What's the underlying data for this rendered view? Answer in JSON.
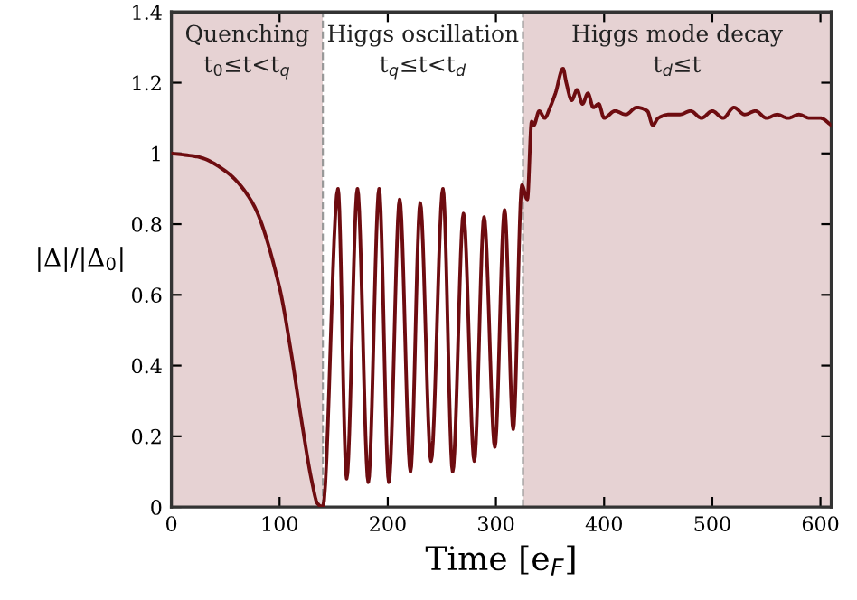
{
  "chart_data": {
    "type": "line",
    "xlabel": "Time [e$_{F}$]",
    "ylabel": "|Δ|/|Δ$_{0}$|",
    "xlim": [
      0,
      610
    ],
    "ylim": [
      0,
      1.4
    ],
    "xticks": [
      0,
      100,
      200,
      300,
      400,
      500,
      600
    ],
    "yticks": [
      0,
      0.2,
      0.4,
      0.6,
      0.8,
      1,
      1.2,
      1.4
    ],
    "grid": false,
    "legend": false,
    "marker": "none",
    "line_style": "solid",
    "bands": [
      {
        "axis": "x",
        "from": 0,
        "to": 140,
        "label": "Quenching\nt$_{0}$≤t<t$_{q}$",
        "color": "#e6d2d3"
      },
      {
        "axis": "x",
        "from": 140,
        "to": 325,
        "label": "Higgs oscillation\nt$_{q}$≤t<t$_{d}$",
        "color": "#ffffff"
      },
      {
        "axis": "x",
        "from": 325,
        "to": 610,
        "label": "Higgs mode decay\nt$_{d}$≤t",
        "color": "#e6d2d3"
      }
    ],
    "ref_lines": [
      {
        "axis": "x",
        "value": 140,
        "color": "#999999",
        "line_style": "dashed"
      },
      {
        "axis": "x",
        "value": 325,
        "color": "#999999",
        "line_style": "dashed"
      }
    ],
    "series": [
      {
        "color": "#6e0c10",
        "x": [
          0,
          25,
          50,
          75,
          100,
          110,
          120,
          130,
          135,
          140,
          154,
          162,
          172,
          182,
          192,
          201,
          211,
          221,
          230,
          240,
          251,
          260,
          270,
          280,
          289,
          299,
          308,
          316,
          324,
          329,
          333,
          335,
          340,
          345,
          350,
          355,
          362,
          365,
          370,
          375,
          380,
          385,
          390,
          395,
          400,
          410,
          420,
          430,
          440,
          445,
          450,
          460,
          470,
          480,
          490,
          500,
          510,
          520,
          530,
          540,
          550,
          560,
          570,
          580,
          590,
          600,
          610
        ],
        "values": [
          1.0,
          0.99,
          0.95,
          0.86,
          0.62,
          0.45,
          0.25,
          0.07,
          0.01,
          0.0,
          0.9,
          0.08,
          0.9,
          0.07,
          0.9,
          0.07,
          0.87,
          0.1,
          0.86,
          0.13,
          0.9,
          0.1,
          0.83,
          0.13,
          0.82,
          0.17,
          0.84,
          0.22,
          0.91,
          0.87,
          1.09,
          1.08,
          1.12,
          1.1,
          1.13,
          1.17,
          1.24,
          1.2,
          1.15,
          1.18,
          1.14,
          1.17,
          1.13,
          1.14,
          1.1,
          1.12,
          1.11,
          1.13,
          1.12,
          1.08,
          1.1,
          1.11,
          1.11,
          1.12,
          1.1,
          1.12,
          1.1,
          1.13,
          1.11,
          1.12,
          1.1,
          1.11,
          1.1,
          1.11,
          1.1,
          1.1,
          1.08
        ]
      }
    ]
  }
}
